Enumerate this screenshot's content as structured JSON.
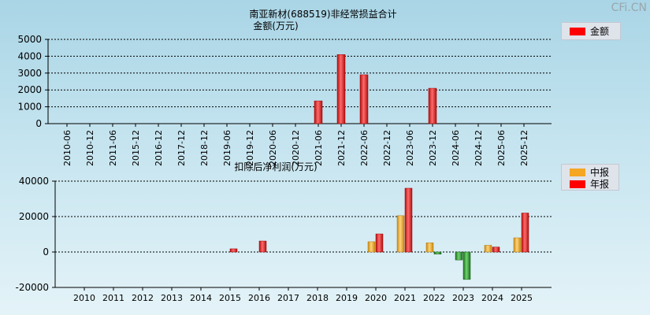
{
  "watermark": "CFi.CN",
  "colors": {
    "red": "#ff0000",
    "orange": "#f5a623",
    "green": "#2ea02e",
    "grid": "#000000"
  },
  "chart_data": [
    {
      "type": "bar",
      "title": "南亚新材(688519)非经常损益合计",
      "subtitle": "金额(万元)",
      "categories": [
        "2010-06",
        "2010-12",
        "2011-06",
        "2015-12",
        "2016-12",
        "2017-12",
        "2018-12",
        "2019-06",
        "2019-12",
        "2020-06",
        "2020-12",
        "2021-06",
        "2021-12",
        "2022-06",
        "2022-12",
        "2023-06",
        "2023-12",
        "2024-06",
        "2024-12",
        "2025-06",
        "2025-12"
      ],
      "series": [
        {
          "name": "金额",
          "values": [
            0,
            0,
            0,
            0,
            0,
            0,
            0,
            0,
            0,
            0,
            0,
            1350,
            4100,
            2900,
            0,
            0,
            2100,
            0,
            0,
            0,
            0
          ]
        }
      ],
      "ylim": [
        0,
        5000
      ],
      "yticks": [
        0,
        1000,
        2000,
        3000,
        4000,
        5000
      ],
      "grid": true,
      "legend": "top-right"
    },
    {
      "type": "bar",
      "title": "扣除后净利润(万元)",
      "categories": [
        "2010",
        "2011",
        "2012",
        "2013",
        "2014",
        "2015",
        "2016",
        "2017",
        "2018",
        "2019",
        "2020",
        "2021",
        "2022",
        "2023",
        "2024",
        "2025"
      ],
      "series": [
        {
          "name": "中报",
          "values": [
            0,
            0,
            0,
            0,
            0,
            0,
            0,
            0,
            0,
            0,
            5800,
            20500,
            5200,
            -4500,
            3800,
            8000
          ]
        },
        {
          "name": "年报",
          "values": [
            0,
            0,
            0,
            0,
            0,
            1800,
            6200,
            0,
            0,
            0,
            10200,
            36000,
            -1200,
            -15500,
            2800,
            22000
          ]
        }
      ],
      "ylim": [
        -20000,
        40000
      ],
      "yticks": [
        -20000,
        0,
        20000,
        40000
      ],
      "grid": true,
      "legend": "top-right"
    }
  ]
}
